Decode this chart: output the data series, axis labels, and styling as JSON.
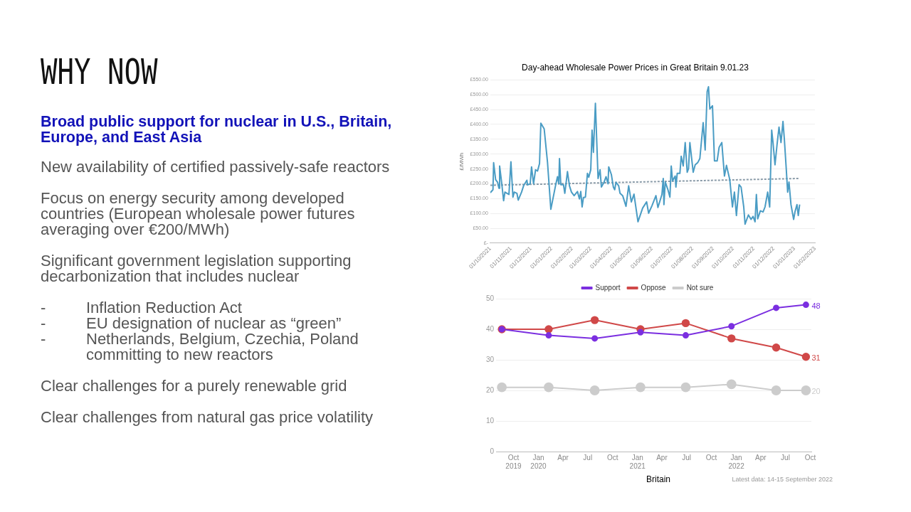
{
  "chart_data": [
    {
      "type": "other",
      "title": "WHY NOW",
      "subtitle": "Broad public support for nuclear in U.S., Britain, Europe, and East Asia",
      "annotations": [
        "New availability of certified passively-safe reactors",
        "Focus on energy security among developed countries (European wholesale power futures averaging over €200/MWh)",
        "Significant government legislation supporting decarbonization that includes nuclear",
        "-\tInflation Reduction Act\n-\tEU designation of nuclear as “green”\n-\tNetherlands, Belgium, Czechia, Poland\n\tcommitting to new reactors",
        "Clear challenges for a purely renewable grid",
        "Clear challenges from natural gas price volatility"
      ]
    },
    {
      "type": "line",
      "title": "Day-ahead Wholesale Power Prices in Great Britain 9.01.23",
      "ylabel": "£/MWh",
      "grid": "y",
      "marker": "none",
      "xlim": [
        "2021-10-01",
        "2023-02-01"
      ],
      "xticks": [
        {
          "value": "2021-10-01",
          "label": "01/10/2021"
        },
        {
          "value": "2021-11-01",
          "label": "01/11/2021"
        },
        {
          "value": "2021-12-01",
          "label": "01/12/2021"
        },
        {
          "value": "2022-01-01",
          "label": "01/01/2022"
        },
        {
          "value": "2022-02-01",
          "label": "01/02/2022"
        },
        {
          "value": "2022-03-01",
          "label": "01/03/2022"
        },
        {
          "value": "2022-04-01",
          "label": "01/04/2022"
        },
        {
          "value": "2022-05-01",
          "label": "01/05/2022"
        },
        {
          "value": "2022-06-01",
          "label": "01/06/2022"
        },
        {
          "value": "2022-07-01",
          "label": "01/07/2022"
        },
        {
          "value": "2022-08-01",
          "label": "01/08/2022"
        },
        {
          "value": "2022-09-01",
          "label": "01/09/2022"
        },
        {
          "value": "2022-10-01",
          "label": "01/10/2022"
        },
        {
          "value": "2022-11-01",
          "label": "01/11/2022"
        },
        {
          "value": "2022-12-01",
          "label": "01/12/2022"
        },
        {
          "value": "2023-01-01",
          "label": "01/01/2023"
        },
        {
          "value": "2023-02-01",
          "label": "01/02/2023"
        }
      ],
      "ylim": [
        0,
        550
      ],
      "yticks": [
        {
          "value": 0,
          "label": "£-"
        },
        {
          "value": 50,
          "label": "£50.00"
        },
        {
          "value": 100,
          "label": "£100.00"
        },
        {
          "value": 150,
          "label": "£150.00"
        },
        {
          "value": 200,
          "label": "£200.00"
        },
        {
          "value": 250,
          "label": "£250.00"
        },
        {
          "value": 300,
          "label": "£300.00"
        },
        {
          "value": 350,
          "label": "£350.00"
        },
        {
          "value": 400,
          "label": "£400.00"
        },
        {
          "value": 450,
          "label": "£450.00"
        },
        {
          "value": 500,
          "label": "£500.00"
        },
        {
          "value": 550,
          "label": "£550.00"
        }
      ],
      "series": [
        {
          "color": "#4a9cc4",
          "line_style": "solid",
          "x": [
            "2021-10-01",
            "2021-10-05",
            "2021-10-06",
            "2021-10-09",
            "2021-10-12",
            "2021-10-14",
            "2021-10-15",
            "2021-10-18",
            "2021-10-21",
            "2021-10-23",
            "2021-10-26",
            "2021-10-29",
            "2021-11-01",
            "2021-11-04",
            "2021-11-06",
            "2021-11-10",
            "2021-11-12",
            "2021-11-17",
            "2021-11-20",
            "2021-11-25",
            "2021-11-26",
            "2021-11-30",
            "2021-12-02",
            "2021-12-05",
            "2021-12-08",
            "2021-12-11",
            "2021-12-14",
            "2021-12-16",
            "2021-12-21",
            "2021-12-26",
            "2021-12-31",
            "2022-01-07",
            "2022-01-10",
            "2022-01-12",
            "2022-01-13",
            "2022-01-15",
            "2022-01-19",
            "2022-01-21",
            "2022-01-25",
            "2022-01-28",
            "2022-01-31",
            "2022-02-04",
            "2022-02-09",
            "2022-02-12",
            "2022-02-14",
            "2022-02-16",
            "2022-02-18",
            "2022-02-21",
            "2022-02-24",
            "2022-02-26",
            "2022-03-01",
            "2022-03-03",
            "2022-03-05",
            "2022-03-08",
            "2022-03-12",
            "2022-03-15",
            "2022-03-17",
            "2022-03-21",
            "2022-03-24",
            "2022-03-27",
            "2022-03-28",
            "2022-04-01",
            "2022-04-04",
            "2022-04-06",
            "2022-04-08",
            "2022-04-12",
            "2022-04-14",
            "2022-04-18",
            "2022-04-23",
            "2022-04-27",
            "2022-05-01",
            "2022-05-05",
            "2022-05-11",
            "2022-05-18",
            "2022-05-24",
            "2022-05-27",
            "2022-06-01",
            "2022-06-07",
            "2022-06-10",
            "2022-06-16",
            "2022-06-18",
            "2022-06-19",
            "2022-06-21",
            "2022-06-25",
            "2022-06-28",
            "2022-06-30",
            "2022-07-02",
            "2022-07-06",
            "2022-07-07",
            "2022-07-09",
            "2022-07-13",
            "2022-07-15",
            "2022-07-18",
            "2022-07-21",
            "2022-07-24",
            "2022-07-26",
            "2022-07-28",
            "2022-08-02",
            "2022-08-05",
            "2022-08-09",
            "2022-08-12",
            "2022-08-17",
            "2022-08-20",
            "2022-08-23",
            "2022-08-25",
            "2022-08-27",
            "2022-08-31",
            "2022-09-03",
            "2022-09-07",
            "2022-09-10",
            "2022-09-14",
            "2022-09-18",
            "2022-09-21",
            "2022-09-26",
            "2022-09-30",
            "2022-10-03",
            "2022-10-06",
            "2022-10-10",
            "2022-10-13",
            "2022-10-17",
            "2022-10-19",
            "2022-10-24",
            "2022-10-28",
            "2022-10-31",
            "2022-11-03",
            "2022-11-05",
            "2022-11-07",
            "2022-11-11",
            "2022-11-15",
            "2022-11-18",
            "2022-11-22",
            "2022-11-25",
            "2022-11-28",
            "2022-11-30",
            "2022-12-03",
            "2022-12-06",
            "2022-12-09",
            "2022-12-12",
            "2022-12-15",
            "2022-12-17",
            "2022-12-20",
            "2022-12-22",
            "2022-12-24",
            "2022-12-27",
            "2022-12-31",
            "2023-01-02",
            "2023-01-05",
            "2023-01-07",
            "2023-01-09"
          ],
          "values": [
            170,
            180,
            271,
            214,
            205,
            185,
            260,
            205,
            143,
            172,
            168,
            164,
            274,
            155,
            172,
            168,
            145,
            172,
            193,
            212,
            196,
            201,
            257,
            200,
            247,
            243,
            268,
            404,
            385,
            272,
            114,
            193,
            224,
            200,
            285,
            197,
            197,
            168,
            241,
            193,
            172,
            160,
            174,
            149,
            174,
            122,
            154,
            155,
            235,
            222,
            247,
            381,
            306,
            471,
            218,
            247,
            189,
            205,
            224,
            200,
            257,
            231,
            189,
            180,
            205,
            193,
            168,
            160,
            124,
            193,
            139,
            165,
            72,
            118,
            139,
            101,
            126,
            160,
            120,
            164,
            218,
            130,
            206,
            180,
            155,
            260,
            210,
            226,
            189,
            235,
            235,
            293,
            260,
            339,
            239,
            251,
            339,
            239,
            264,
            272,
            285,
            406,
            314,
            511,
            527,
            452,
            463,
            277,
            277,
            323,
            339,
            226,
            262,
            214,
            122,
            172,
            93,
            197,
            189,
            122,
            64,
            95,
            80,
            90,
            72,
            164,
            82,
            109,
            105,
            122,
            172,
            122,
            381,
            339,
            264,
            331,
            391,
            339,
            410,
            352,
            247,
            172,
            206,
            130,
            80,
            105,
            130,
            93,
            130
          ]
        },
        {
          "type": "line",
          "color": "#8a9ba8",
          "line_style": "dotted",
          "x": [
            "2021-10-01",
            "2023-01-09"
          ],
          "values": [
            195,
            218
          ]
        }
      ]
    },
    {
      "type": "line",
      "grid": "y",
      "legend": "top",
      "marker": "circle",
      "annotations": [
        "Britain",
        "Latest data: 14-15 September 2022"
      ],
      "xlim": [
        "2019-07-29",
        "2022-10-05"
      ],
      "xticks": [
        {
          "value": "2019-10-01",
          "label": "Oct 2019"
        },
        {
          "value": "2020-01-01",
          "label": "Jan 2020"
        },
        {
          "value": "2020-04-01",
          "label": "Apr"
        },
        {
          "value": "2020-07-01",
          "label": "Jul"
        },
        {
          "value": "2020-10-01",
          "label": "Oct"
        },
        {
          "value": "2021-01-01",
          "label": "Jan 2021"
        },
        {
          "value": "2021-04-01",
          "label": "Apr"
        },
        {
          "value": "2021-07-01",
          "label": "Jul"
        },
        {
          "value": "2021-10-01",
          "label": "Oct"
        },
        {
          "value": "2022-01-01",
          "label": "Jan 2022"
        },
        {
          "value": "2022-04-01",
          "label": "Apr"
        },
        {
          "value": "2022-07-01",
          "label": "Jul"
        },
        {
          "value": "2022-10-01",
          "label": "Oct"
        }
      ],
      "ylim": [
        0,
        50
      ],
      "yticks": [
        0,
        10,
        20,
        30,
        40,
        50
      ],
      "x": [
        "2019-08-19",
        "2020-02-08",
        "2020-07-27",
        "2021-01-12",
        "2021-06-28",
        "2021-12-14",
        "2022-05-28",
        "2022-09-15"
      ],
      "series": [
        {
          "name": "Support",
          "color": "#7b2fe0",
          "values": [
            40,
            38,
            37,
            39,
            38,
            41,
            47,
            48
          ],
          "value_labels": [
            null,
            null,
            null,
            null,
            null,
            null,
            null,
            "48"
          ]
        },
        {
          "name": "Oppose",
          "color": "#d04848",
          "values": [
            40,
            40,
            43,
            40,
            42,
            37,
            34,
            31
          ],
          "value_labels": [
            null,
            null,
            null,
            null,
            null,
            null,
            null,
            "31"
          ]
        },
        {
          "name": "Not sure",
          "color": "#cccccc",
          "values": [
            21,
            21,
            20,
            21,
            21,
            22,
            20,
            20
          ],
          "value_labels": [
            null,
            null,
            null,
            null,
            null,
            null,
            null,
            "20"
          ]
        }
      ]
    }
  ]
}
